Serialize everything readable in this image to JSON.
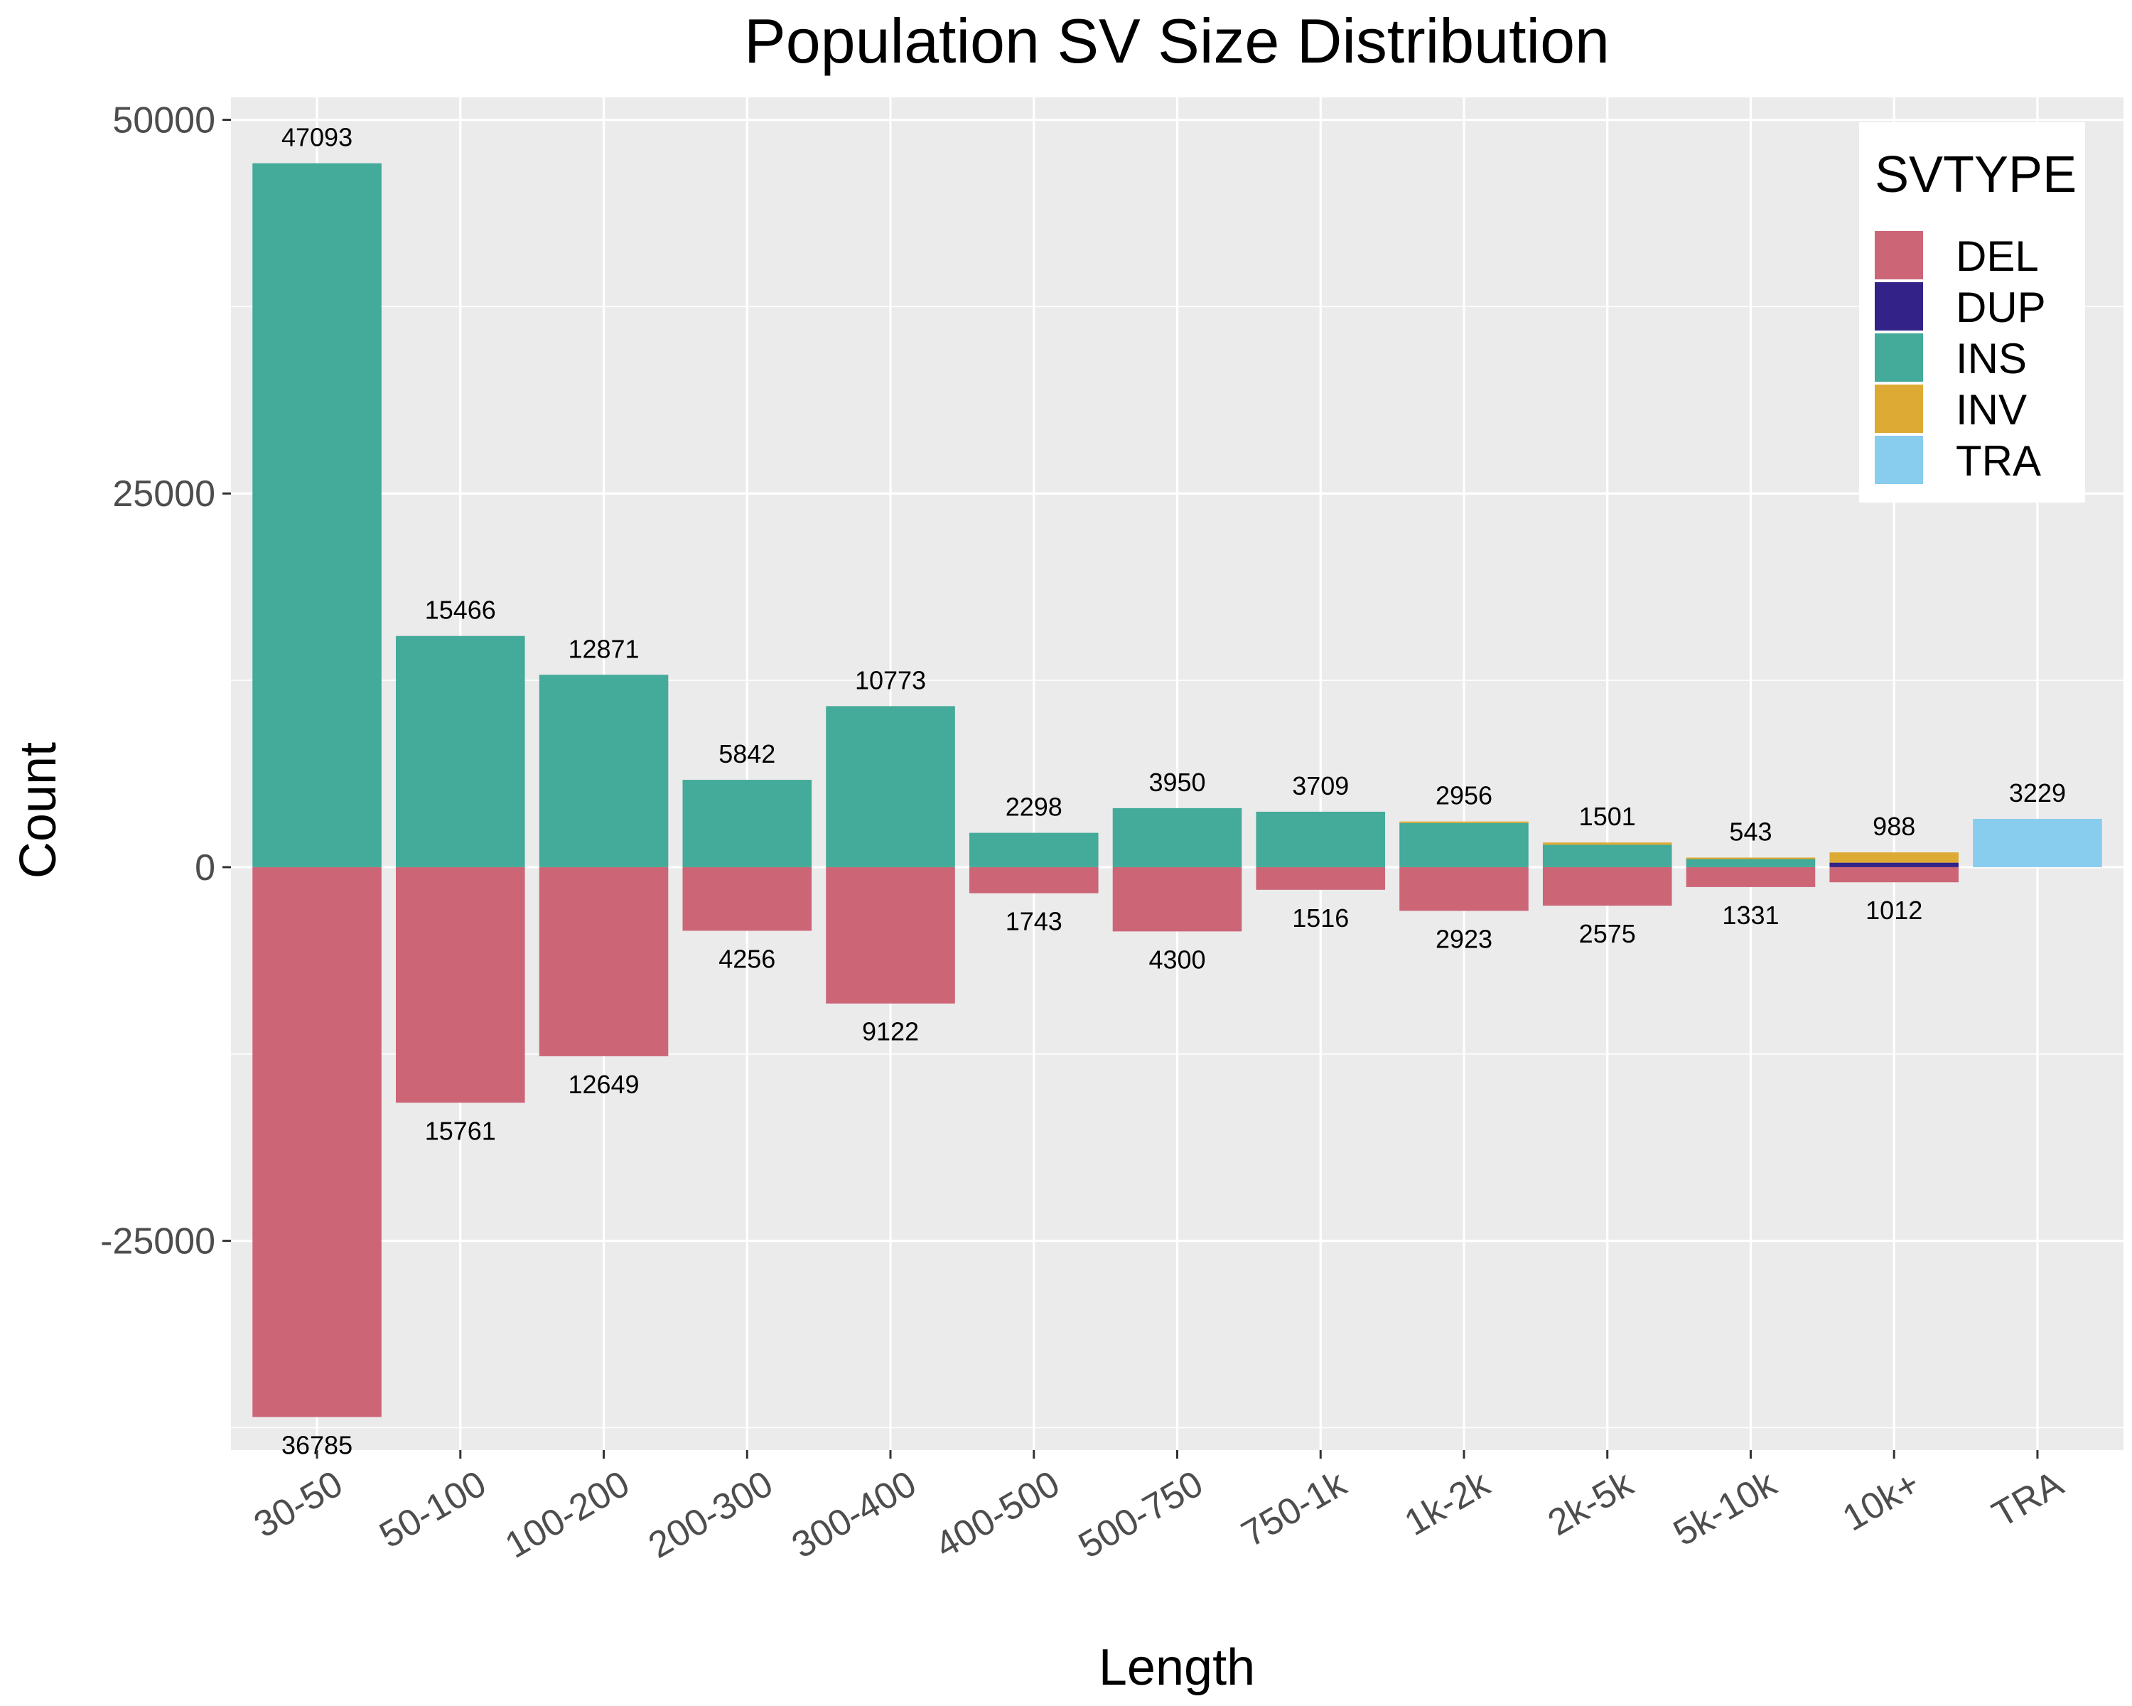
{
  "chart_data": {
    "type": "bar",
    "title": "Population SV Size Distribution",
    "xlabel": "Length",
    "ylabel": "Count",
    "ylim": [
      -39000,
      51500
    ],
    "yticks": [
      -25000,
      0,
      25000,
      50000
    ],
    "categories": [
      "30-50",
      "50-100",
      "100-200",
      "200-300",
      "300-400",
      "400-500",
      "500-750",
      "750-1k",
      "1k-2k",
      "2k-5k",
      "5k-10k",
      "10k+",
      "TRA"
    ],
    "series": [
      {
        "name": "DEL",
        "color": "#CC6677",
        "values": [
          -36785,
          -15761,
          -12649,
          -4256,
          -9122,
          -1743,
          -4300,
          -1516,
          -2923,
          -2575,
          -1331,
          -1012,
          0
        ]
      },
      {
        "name": "DUP",
        "color": "#332288",
        "values": [
          0,
          0,
          0,
          0,
          0,
          0,
          0,
          0,
          0,
          0,
          0,
          300,
          0
        ]
      },
      {
        "name": "INS",
        "color": "#44AA99",
        "values": [
          47093,
          15466,
          12871,
          5842,
          10773,
          2298,
          3950,
          3709,
          2956,
          1501,
          543,
          0,
          0
        ]
      },
      {
        "name": "INV",
        "color": "#DDAA33",
        "values": [
          0,
          0,
          0,
          0,
          0,
          0,
          0,
          0,
          100,
          150,
          100,
          688,
          0
        ]
      },
      {
        "name": "TRA",
        "color": "#88CCEE",
        "values": [
          0,
          0,
          0,
          0,
          0,
          0,
          0,
          0,
          0,
          0,
          0,
          0,
          3229
        ]
      }
    ],
    "labels_positive": [
      "47093",
      "15466",
      "12871",
      "5842",
      "10773",
      "2298",
      "3950",
      "3709",
      "2956",
      "1501",
      "543",
      "988",
      "3229"
    ],
    "labels_negative": [
      "36785",
      "15761",
      "12649",
      "4256",
      "9122",
      "1743",
      "4300",
      "1516",
      "2923",
      "2575",
      "1331",
      "1012",
      ""
    ],
    "legend": {
      "title": "SVTYPE",
      "position": "top-right"
    },
    "grid": true,
    "panel_background": "#EBEBEB"
  }
}
